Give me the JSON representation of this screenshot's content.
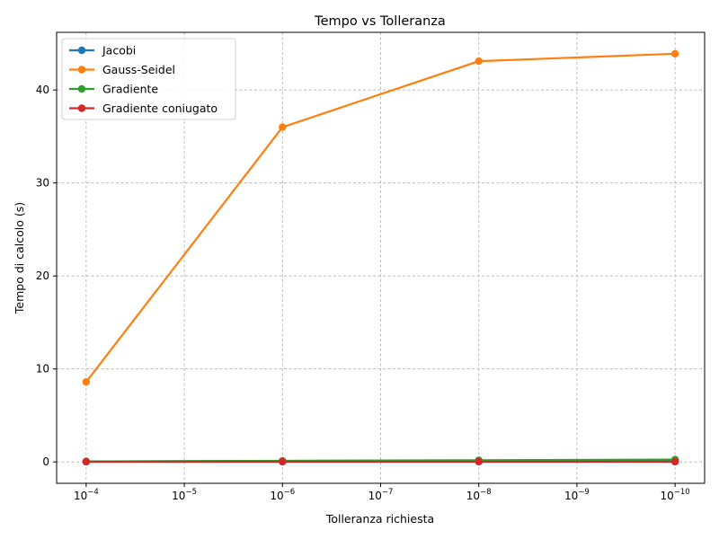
{
  "chart_data": {
    "type": "line",
    "title": "Tempo vs Tolleranza",
    "xlabel": "Tolleranza richiesta",
    "ylabel": "Tempo di calcolo (s)",
    "x_scale": "log",
    "x_reversed": true,
    "x": [
      0.0001,
      1e-06,
      1e-08,
      1e-10
    ],
    "xlim": [
      0.0002,
      5e-11
    ],
    "x_ticks": [
      {
        "value": 0.0001,
        "base": "10",
        "exp": "−4"
      },
      {
        "value": 1e-05,
        "base": "10",
        "exp": "−5"
      },
      {
        "value": 1e-06,
        "base": "10",
        "exp": "−6"
      },
      {
        "value": 1e-07,
        "base": "10",
        "exp": "−7"
      },
      {
        "value": 1e-08,
        "base": "10",
        "exp": "−8"
      },
      {
        "value": 1e-09,
        "base": "10",
        "exp": "−9"
      },
      {
        "value": 1e-10,
        "base": "10",
        "exp": "−10"
      }
    ],
    "ylim": [
      -2.3,
      46.2
    ],
    "y_ticks": [
      {
        "value": 0,
        "label": "0"
      },
      {
        "value": 10,
        "label": "10"
      },
      {
        "value": 20,
        "label": "20"
      },
      {
        "value": 30,
        "label": "30"
      },
      {
        "value": 40,
        "label": "40"
      }
    ],
    "grid": true,
    "legend_position": "top-left",
    "series": [
      {
        "name": "Jacobi",
        "color": "#1f77b4",
        "values": [
          0.05,
          0.1,
          0.15,
          0.2
        ]
      },
      {
        "name": "Gauss-Seidel",
        "color": "#ff7f0e",
        "values": [
          8.6,
          36.0,
          43.1,
          43.9
        ]
      },
      {
        "name": "Gradiente",
        "color": "#2ca02c",
        "values": [
          0.05,
          0.12,
          0.18,
          0.25
        ]
      },
      {
        "name": "Gradiente coniugato",
        "color": "#d62728",
        "values": [
          0.02,
          0.02,
          0.02,
          0.02
        ]
      }
    ]
  }
}
